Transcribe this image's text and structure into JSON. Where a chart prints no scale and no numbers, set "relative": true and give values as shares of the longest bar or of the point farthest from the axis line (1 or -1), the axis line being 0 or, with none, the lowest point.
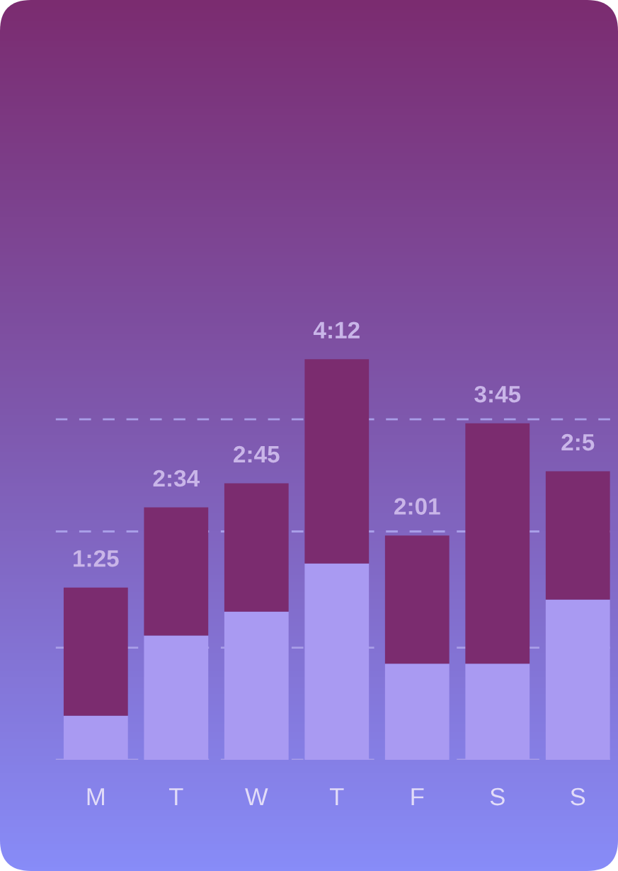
{
  "chart_data": {
    "type": "bar",
    "relative": true,
    "stacked": true,
    "categories": [
      "M",
      "T",
      "W",
      "T",
      "F",
      "S",
      "S"
    ],
    "series": [
      {
        "color": "#a99af2",
        "values": [
          0.11,
          0.31,
          0.37,
          0.49,
          0.24,
          0.24,
          0.4
        ]
      },
      {
        "color": "#7b2c6f",
        "values": [
          0.32,
          0.32,
          0.32,
          0.51,
          0.32,
          0.6,
          0.32
        ]
      }
    ],
    "annotations": [
      "1:25",
      "2:34",
      "2:45",
      "4:12",
      "2:01",
      "3:45",
      "2:5"
    ],
    "ref_lines": [
      {
        "axis": "y",
        "value": 0,
        "color": "#a99ee8",
        "line_style": "dashed"
      },
      {
        "axis": "y",
        "value": 0.28,
        "color": "#a99ee8",
        "line_style": "dashed"
      },
      {
        "axis": "y",
        "value": 0.57,
        "color": "#a99ee8",
        "line_style": "dashed"
      },
      {
        "axis": "y",
        "value": 0.85,
        "color": "#a99ee8",
        "line_style": "dashed"
      }
    ],
    "legend": false,
    "grid": false
  }
}
